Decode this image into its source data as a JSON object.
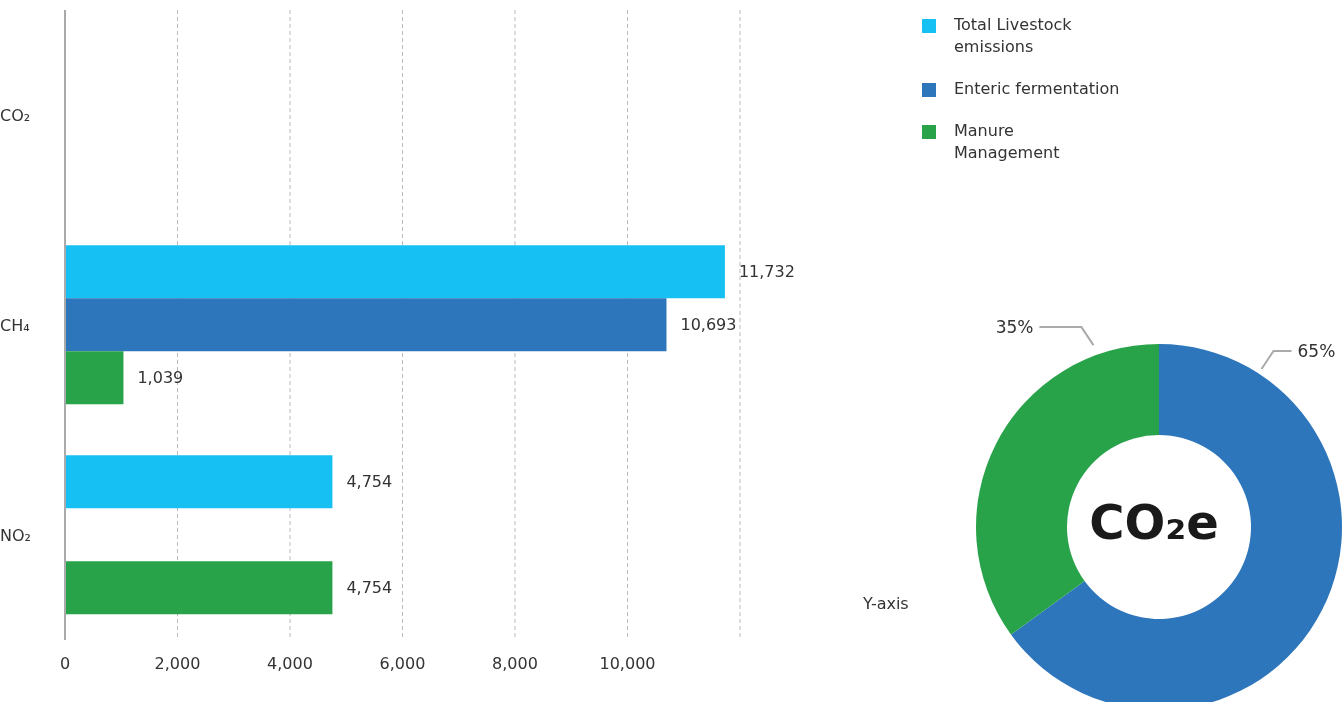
{
  "chart_data": [
    {
      "type": "bar",
      "orientation": "horizontal",
      "categories": [
        "CO₂",
        "CH₄",
        "NO₂"
      ],
      "series": [
        {
          "name": "Total Livestock emissions",
          "color": "#17c0f2",
          "values": [
            null,
            11732,
            4754
          ],
          "value_labels": [
            null,
            "11,732",
            "4,754"
          ]
        },
        {
          "name": "Enteric fermentation",
          "color": "#2e76bb",
          "values": [
            null,
            10693,
            null
          ],
          "value_labels": [
            null,
            "10,693",
            null
          ]
        },
        {
          "name": "Manure Management",
          "color": "#29a34a",
          "values": [
            null,
            1039,
            4754
          ],
          "value_labels": [
            null,
            "1,039",
            "4,754"
          ]
        }
      ],
      "xlim": [
        0,
        12000
      ],
      "xticks": [
        0,
        {
          "value": 2000,
          "label": "2,000"
        },
        {
          "value": 4000,
          "label": "4,000"
        },
        {
          "value": 6000,
          "label": "6,000"
        },
        {
          "value": 8000,
          "label": "8,000"
        },
        {
          "value": 10000,
          "label": "10,000"
        }
      ],
      "grid": "x",
      "legend": "top right",
      "annotations": [
        "Y-axis"
      ]
    },
    {
      "type": "donut",
      "title": "CO₂e",
      "categories": [
        null,
        null
      ],
      "values": [
        65,
        35
      ],
      "colors": [
        "#2e76bb",
        "#29a34a"
      ],
      "value_labels": [
        "65%",
        "35%"
      ]
    }
  ]
}
